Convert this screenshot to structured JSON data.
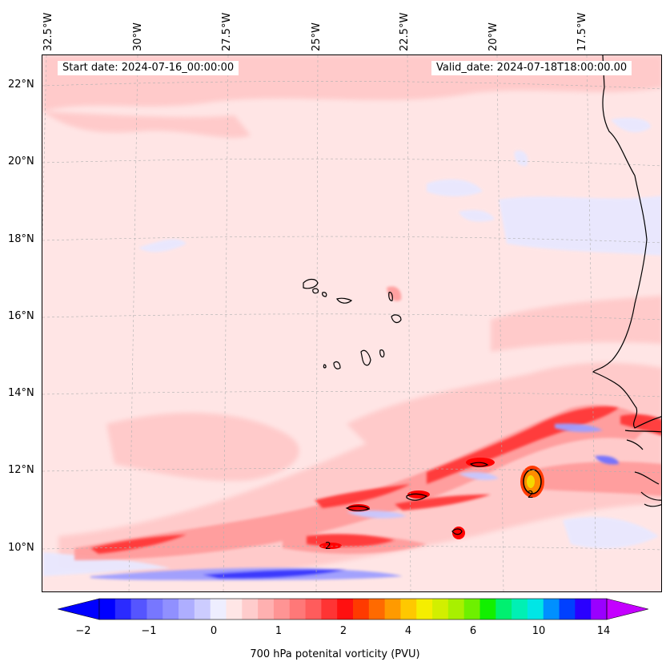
{
  "map": {
    "start_date": "Start date: 2024-07-16_00:00:00",
    "valid_date": "Valid_date: 2024-07-18T18:00:00.00",
    "lon_labels": [
      "32.5°W",
      "30°W",
      "27.5°W",
      "25°W",
      "22.5°W",
      "20°W",
      "17.5°W"
    ],
    "lat_labels": [
      "22°N",
      "20°N",
      "18°N",
      "16°N",
      "14°N",
      "12°N",
      "10°N"
    ],
    "contour_labels": [
      "2",
      "2"
    ],
    "colors": {
      "background": "#ffe5e5",
      "light_pink": "#ffc8c8",
      "medium_pink": "#ff9a9a",
      "red": "#ff3030",
      "deep_red": "#ff0000",
      "orange": "#ff8c00",
      "yellow": "#f5d800",
      "light_blue": "#e8e8ff",
      "blue": "#9e9eff",
      "deep_blue": "#3030ff",
      "coast": "#000000"
    }
  },
  "colorbar": {
    "label": "700 hPa potenital vorticity (PVU)",
    "tick_labels": [
      "−2",
      "−1",
      "0",
      "1",
      "2",
      "4",
      "6",
      "10",
      "14"
    ],
    "colors": [
      "#0000ff",
      "#2b2bff",
      "#5555ff",
      "#7777ff",
      "#9090ff",
      "#aeaeff",
      "#ccccff",
      "#eeeeff",
      "#ffe6e6",
      "#ffcccc",
      "#ffb0b0",
      "#ff9494",
      "#ff7878",
      "#ff5c5c",
      "#ff3434",
      "#ff1010",
      "#ff3a00",
      "#ff6a00",
      "#ff9a00",
      "#ffc800",
      "#f5ee00",
      "#d2ef00",
      "#a8f000",
      "#6ef000",
      "#12f000",
      "#00f070",
      "#00f0b4",
      "#00e6e6",
      "#0090ff",
      "#0040ff",
      "#2a00ff",
      "#9a00ff"
    ],
    "extend_low_color": "#0000ff",
    "extend_high_color": "#c400ff"
  }
}
